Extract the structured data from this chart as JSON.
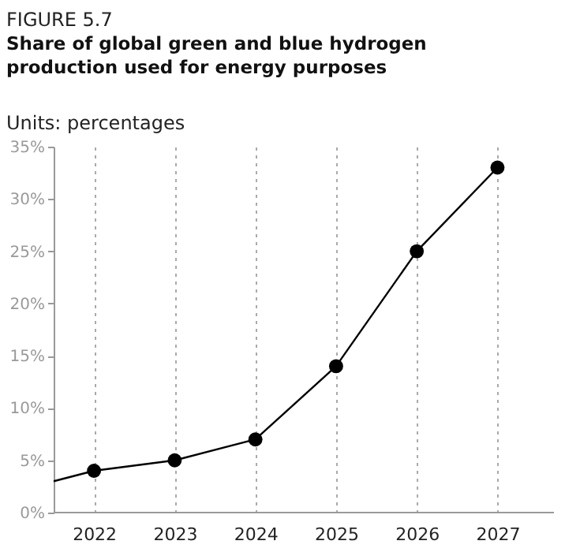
{
  "chart_data": {
    "type": "line",
    "title": "FIGURE 5.7",
    "subtitle": "Share of global green and blue hydrogen production used for energy purposes",
    "annotations": [
      "Units: percentages"
    ],
    "xlim": [
      2021.5,
      2027.7
    ],
    "xticks": [
      2022,
      2023,
      2024,
      2025,
      2026,
      2027
    ],
    "ylim": [
      0,
      35
    ],
    "yticks": [
      {
        "value": 0,
        "label": "0%"
      },
      {
        "value": 5,
        "label": "5%"
      },
      {
        "value": 10,
        "label": "10%"
      },
      {
        "value": 15,
        "label": "15%"
      },
      {
        "value": 20,
        "label": "20%"
      },
      {
        "value": 25,
        "label": "25%"
      },
      {
        "value": 30,
        "label": "30%"
      },
      {
        "value": 35,
        "label": "35%"
      }
    ],
    "grid": "x",
    "series": [
      {
        "marker": "none",
        "color": "#000000",
        "x": [
          2021.5,
          2022,
          2023,
          2024,
          2025,
          2026,
          2027
        ],
        "values": [
          3,
          4,
          5,
          7,
          14,
          25,
          33
        ]
      },
      {
        "type": "scatter",
        "marker": "circle",
        "color": "#000000",
        "x": [
          2022,
          2023,
          2024,
          2025,
          2026,
          2027
        ],
        "values": [
          4,
          5,
          7,
          14,
          25,
          33
        ]
      }
    ]
  }
}
